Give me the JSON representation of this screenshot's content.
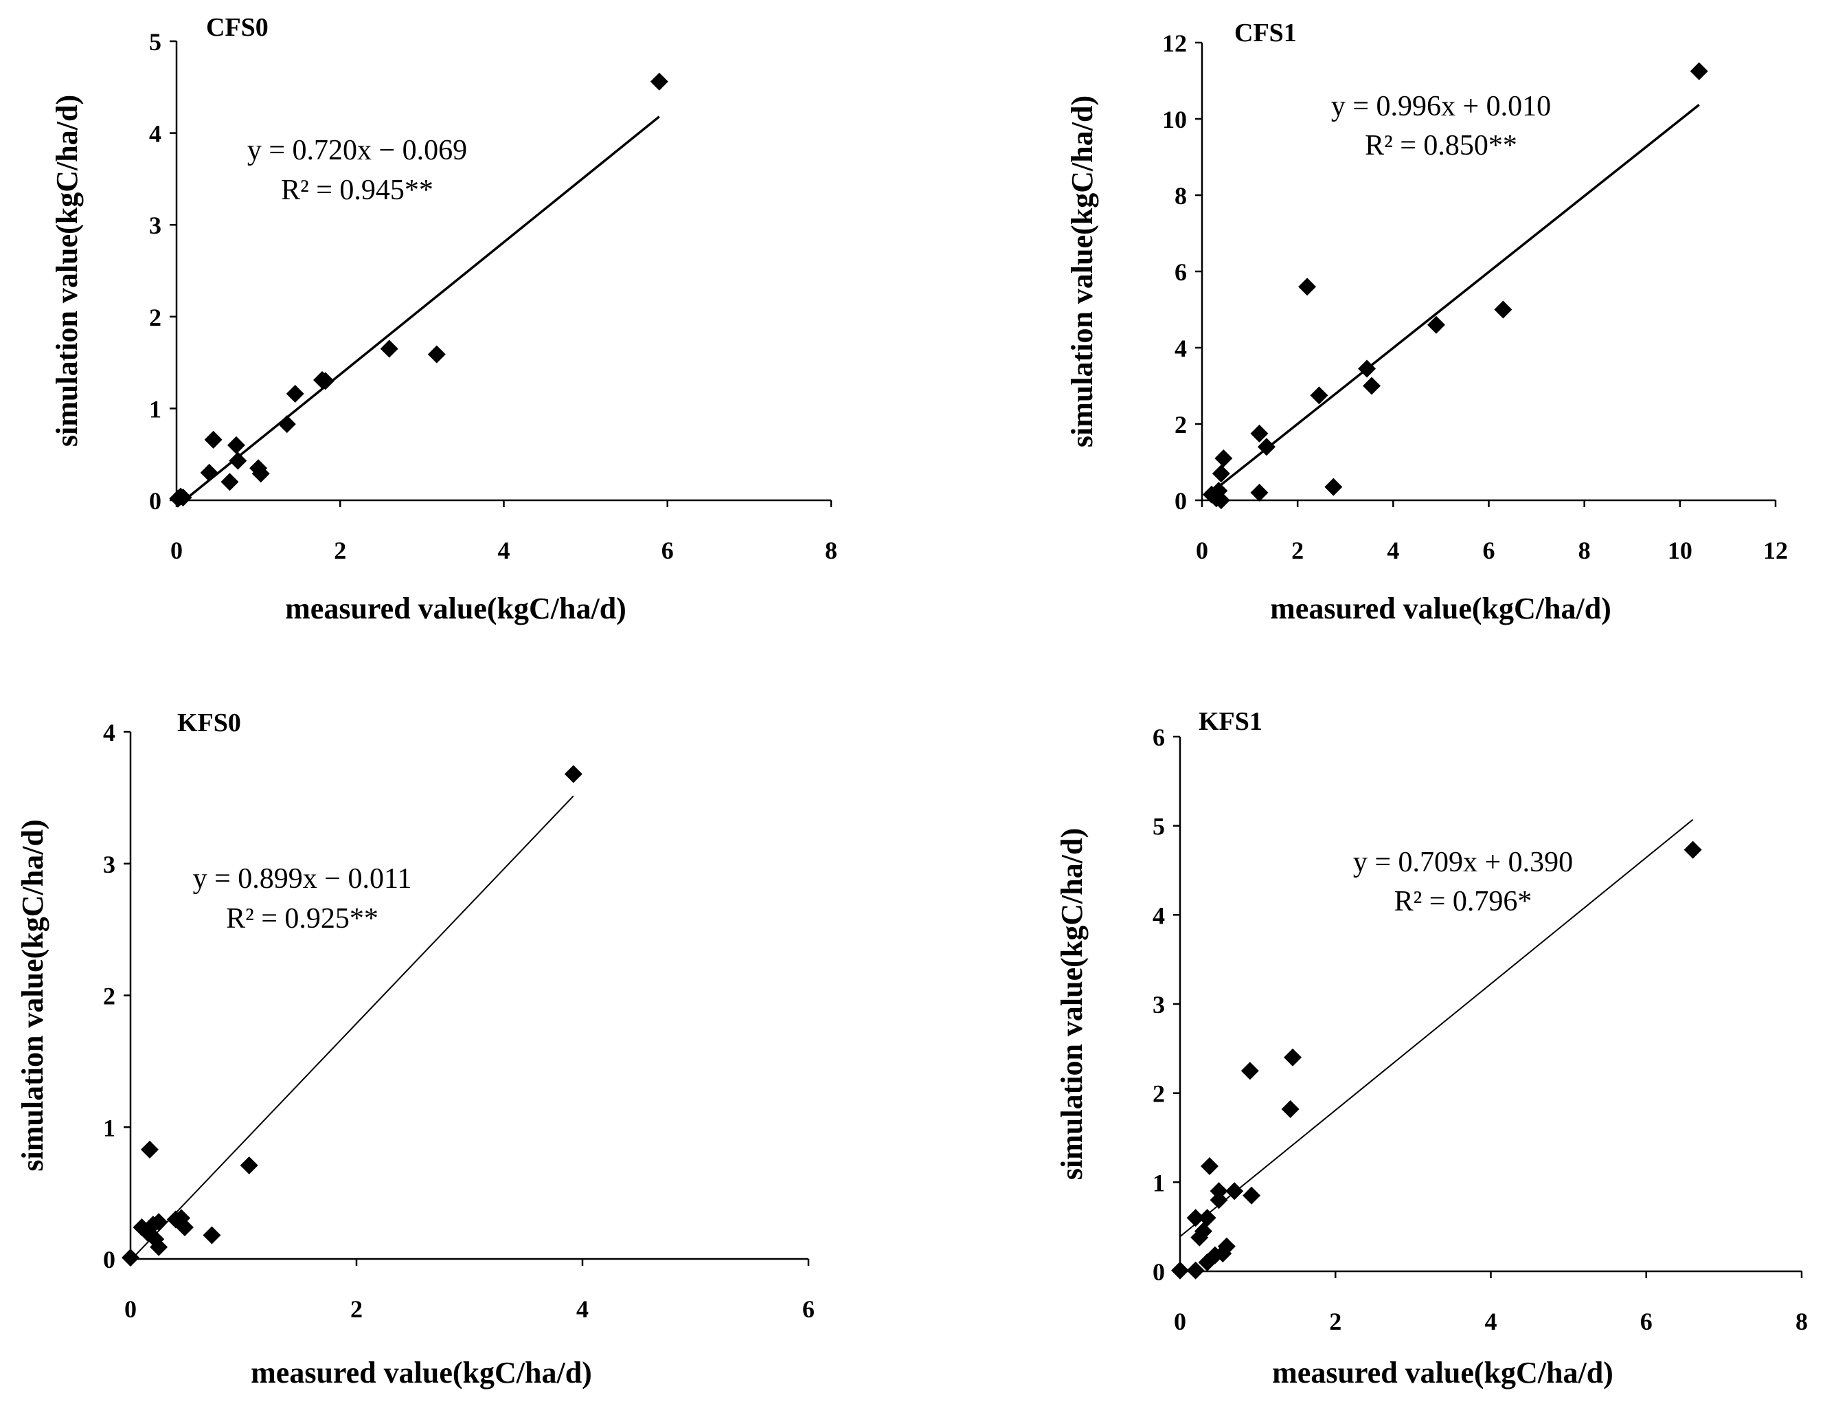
{
  "chart_data": [
    {
      "type": "scatter",
      "title": "CFS0",
      "xlabel": "measured value(kgC/ha/d)",
      "ylabel": "simulation value(kgC/ha/d)",
      "xlim": [
        0,
        8
      ],
      "ylim": [
        0,
        5
      ],
      "xticks": [
        "0",
        "2",
        "4",
        "6",
        "8"
      ],
      "yticks": [
        "0",
        "1",
        "2",
        "3",
        "4",
        "5"
      ],
      "equation": "y = 0.720x − 0.069",
      "r2": "R² = 0.945**",
      "trendline": {
        "slope": 0.72,
        "intercept": -0.069,
        "x_range": [
          0.0,
          5.9
        ]
      },
      "points": [
        [
          0.02,
          0.02
        ],
        [
          0.05,
          0.04
        ],
        [
          0.08,
          0.03
        ],
        [
          0.4,
          0.3
        ],
        [
          0.45,
          0.66
        ],
        [
          0.65,
          0.2
        ],
        [
          0.73,
          0.6
        ],
        [
          0.75,
          0.43
        ],
        [
          1.0,
          0.35
        ],
        [
          1.03,
          0.29
        ],
        [
          1.35,
          0.83
        ],
        [
          1.45,
          1.16
        ],
        [
          1.78,
          1.31
        ],
        [
          1.82,
          1.3
        ],
        [
          2.6,
          1.65
        ],
        [
          3.18,
          1.59
        ],
        [
          5.9,
          4.56
        ]
      ]
    },
    {
      "type": "scatter",
      "title": "CFS1",
      "xlabel": "measured value(kgC/ha/d)",
      "ylabel": "simulation value(kgC/ha/d)",
      "xlim": [
        0,
        12
      ],
      "ylim": [
        0,
        12
      ],
      "xticks": [
        "0",
        "2",
        "4",
        "6",
        "8",
        "10",
        "12"
      ],
      "yticks": [
        "0",
        "2",
        "4",
        "6",
        "8",
        "10",
        "12"
      ],
      "equation": "y = 0.996x + 0.010",
      "r2": "R² = 0.850**",
      "trendline": {
        "slope": 0.996,
        "intercept": 0.01,
        "x_range": [
          0.2,
          10.4
        ]
      },
      "points": [
        [
          0.2,
          0.15
        ],
        [
          0.3,
          0.05
        ],
        [
          0.35,
          0.25
        ],
        [
          0.4,
          0.0
        ],
        [
          0.4,
          0.7
        ],
        [
          0.45,
          1.1
        ],
        [
          1.2,
          1.75
        ],
        [
          1.2,
          0.2
        ],
        [
          1.35,
          1.4
        ],
        [
          2.2,
          5.6
        ],
        [
          2.45,
          2.75
        ],
        [
          2.75,
          0.35
        ],
        [
          3.45,
          3.45
        ],
        [
          3.55,
          3.0
        ],
        [
          4.9,
          4.6
        ],
        [
          6.3,
          5.0
        ],
        [
          10.4,
          11.25
        ]
      ]
    },
    {
      "type": "scatter",
      "title": "KFS0",
      "xlabel": "measured value(kgC/ha/d)",
      "ylabel": "simulation value(kgC/ha/d)",
      "xlim": [
        0,
        6
      ],
      "ylim": [
        0,
        4
      ],
      "xticks": [
        "0",
        "2",
        "4",
        "6"
      ],
      "yticks": [
        "0",
        "1",
        "2",
        "3",
        "4"
      ],
      "equation": "y = 0.899x − 0.011",
      "r2": "R² = 0.925**",
      "trendline": {
        "slope": 0.899,
        "intercept": -0.011,
        "x_range": [
          0.0,
          3.92
        ]
      },
      "points": [
        [
          0.0,
          0.01
        ],
        [
          0.1,
          0.24
        ],
        [
          0.15,
          0.2
        ],
        [
          0.17,
          0.83
        ],
        [
          0.2,
          0.26
        ],
        [
          0.22,
          0.15
        ],
        [
          0.25,
          0.28
        ],
        [
          0.25,
          0.09
        ],
        [
          0.4,
          0.3
        ],
        [
          0.45,
          0.31
        ],
        [
          0.48,
          0.24
        ],
        [
          0.72,
          0.18
        ],
        [
          1.05,
          0.71
        ],
        [
          3.92,
          3.68
        ]
      ]
    },
    {
      "type": "scatter",
      "title": "KFS1",
      "xlabel": "measured value(kgC/ha/d)",
      "ylabel": "simulation value(kgC/ha/d)",
      "xlim": [
        0,
        8
      ],
      "ylim": [
        0,
        6
      ],
      "xticks": [
        "0",
        "2",
        "4",
        "6",
        "8"
      ],
      "yticks": [
        "0",
        "1",
        "2",
        "3",
        "4",
        "5",
        "6"
      ],
      "equation": "y = 0.709x + 0.390",
      "r2": "R² = 0.796*",
      "trendline": {
        "slope": 0.709,
        "intercept": 0.39,
        "x_range": [
          0.0,
          6.6
        ]
      },
      "points": [
        [
          0.0,
          0.01
        ],
        [
          0.2,
          0.6
        ],
        [
          0.2,
          0.01
        ],
        [
          0.25,
          0.38
        ],
        [
          0.3,
          0.45
        ],
        [
          0.35,
          0.1
        ],
        [
          0.35,
          0.6
        ],
        [
          0.38,
          1.18
        ],
        [
          0.45,
          0.18
        ],
        [
          0.5,
          0.8
        ],
        [
          0.5,
          0.9
        ],
        [
          0.55,
          0.2
        ],
        [
          0.6,
          0.28
        ],
        [
          0.7,
          0.9
        ],
        [
          0.9,
          2.25
        ],
        [
          0.92,
          0.85
        ],
        [
          1.42,
          1.82
        ],
        [
          1.45,
          2.4
        ],
        [
          6.6,
          4.73
        ]
      ]
    }
  ]
}
